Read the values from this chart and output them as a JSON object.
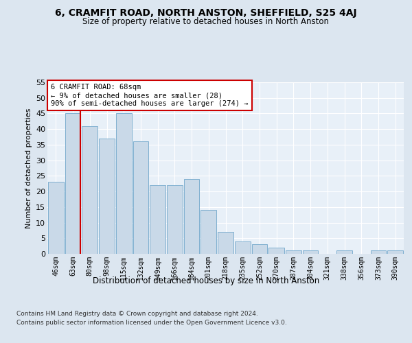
{
  "title": "6, CRAMFIT ROAD, NORTH ANSTON, SHEFFIELD, S25 4AJ",
  "subtitle": "Size of property relative to detached houses in North Anston",
  "xlabel": "Distribution of detached houses by size in North Anston",
  "ylabel": "Number of detached properties",
  "categories": [
    "46sqm",
    "63sqm",
    "80sqm",
    "98sqm",
    "115sqm",
    "132sqm",
    "149sqm",
    "166sqm",
    "184sqm",
    "201sqm",
    "218sqm",
    "235sqm",
    "252sqm",
    "270sqm",
    "287sqm",
    "304sqm",
    "321sqm",
    "338sqm",
    "356sqm",
    "373sqm",
    "390sqm"
  ],
  "values": [
    23,
    45,
    41,
    37,
    45,
    36,
    22,
    22,
    24,
    14,
    7,
    4,
    3,
    2,
    1,
    1,
    0,
    1,
    0,
    1,
    1
  ],
  "bar_color": "#c9d9e8",
  "bar_edgecolor": "#7fafd0",
  "vline_color": "#cc0000",
  "vline_pos": 1.45,
  "annotation_text": "6 CRAMFIT ROAD: 68sqm\n← 9% of detached houses are smaller (28)\n90% of semi-detached houses are larger (274) →",
  "annotation_box_color": "#ffffff",
  "annotation_box_edgecolor": "#cc0000",
  "ylim": [
    0,
    55
  ],
  "yticks": [
    0,
    5,
    10,
    15,
    20,
    25,
    30,
    35,
    40,
    45,
    50,
    55
  ],
  "footer_line1": "Contains HM Land Registry data © Crown copyright and database right 2024.",
  "footer_line2": "Contains public sector information licensed under the Open Government Licence v3.0.",
  "bg_color": "#dce6f0",
  "plot_bg_color": "#e8f0f8"
}
